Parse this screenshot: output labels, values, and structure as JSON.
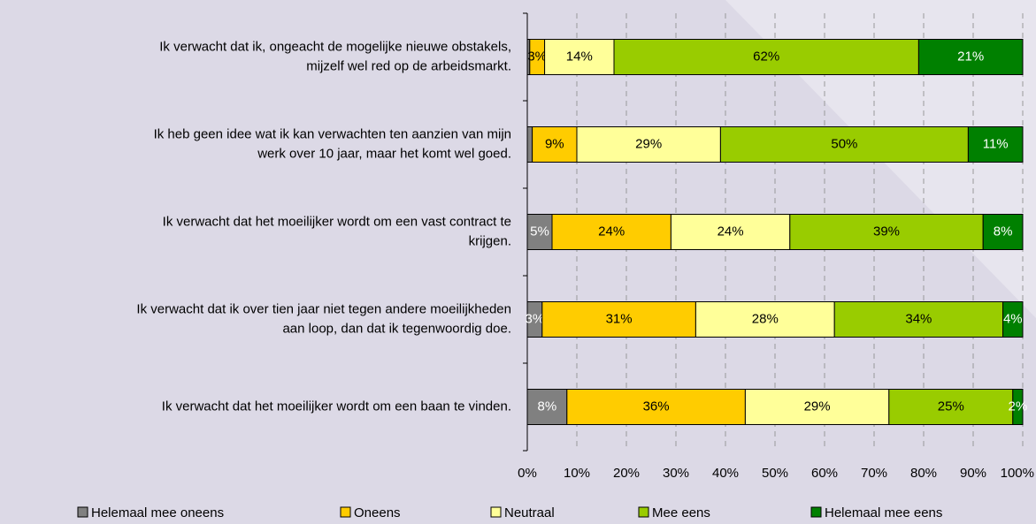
{
  "chart_data": {
    "type": "stacked-bar-horizontal",
    "categories": [
      [
        "Ik verwacht dat ik, ongeacht de mogelijke nieuwe obstakels,",
        "mijzelf wel red op de arbeidsmarkt."
      ],
      [
        "Ik heb geen idee wat ik kan verwachten ten aanzien van mijn",
        "werk over 10 jaar, maar het komt wel goed."
      ],
      [
        "Ik verwacht dat het moeilijker wordt om een vast contract te",
        "krijgen."
      ],
      [
        "Ik verwacht dat ik over tien jaar niet tegen andere moeilijkheden",
        "aan loop, dan dat ik tegenwoordig doe."
      ],
      [
        "Ik verwacht dat het moeilijker wordt om een baan te vinden."
      ]
    ],
    "series": [
      {
        "name": "Helemaal mee oneens",
        "color": "#808080",
        "label_color": "#ffffff",
        "values": [
          0.5,
          1,
          5,
          3,
          8
        ],
        "value_labels": [
          null,
          null,
          "5%",
          "3%",
          "8%"
        ]
      },
      {
        "name": "Oneens",
        "color": "#ffcc00",
        "label_color": "#000000",
        "values": [
          3,
          9,
          24,
          31,
          36
        ],
        "value_labels": [
          "3%",
          "9%",
          "24%",
          "31%",
          "36%"
        ]
      },
      {
        "name": "Neutraal",
        "color": "#ffff99",
        "label_color": "#000000",
        "values": [
          14,
          29,
          24,
          28,
          29
        ],
        "value_labels": [
          "14%",
          "29%",
          "24%",
          "28%",
          "29%"
        ]
      },
      {
        "name": "Mee eens",
        "color": "#99cc00",
        "label_color": "#000000",
        "values": [
          61.5,
          50,
          39,
          34,
          25
        ],
        "value_labels": [
          "62%",
          "50%",
          "39%",
          "34%",
          "25%"
        ]
      },
      {
        "name": "Helemaal mee eens",
        "color": "#008000",
        "label_color": "#ffffff",
        "values": [
          21,
          11,
          8,
          4,
          2
        ],
        "value_labels": [
          "21%",
          "11%",
          "8%",
          "4%",
          "2%"
        ]
      }
    ],
    "xlim": [
      0,
      100
    ],
    "xticks": [
      {
        "value": 0,
        "label": "0%"
      },
      {
        "value": 10,
        "label": "10%"
      },
      {
        "value": 20,
        "label": "20%"
      },
      {
        "value": 30,
        "label": "30%"
      },
      {
        "value": 40,
        "label": "40%"
      },
      {
        "value": 50,
        "label": "50%"
      },
      {
        "value": 60,
        "label": "60%"
      },
      {
        "value": 70,
        "label": "70%"
      },
      {
        "value": 80,
        "label": "80%"
      },
      {
        "value": 90,
        "label": "90%"
      },
      {
        "value": 100,
        "label": "100%"
      }
    ],
    "grid": true,
    "legend": "bottom"
  }
}
